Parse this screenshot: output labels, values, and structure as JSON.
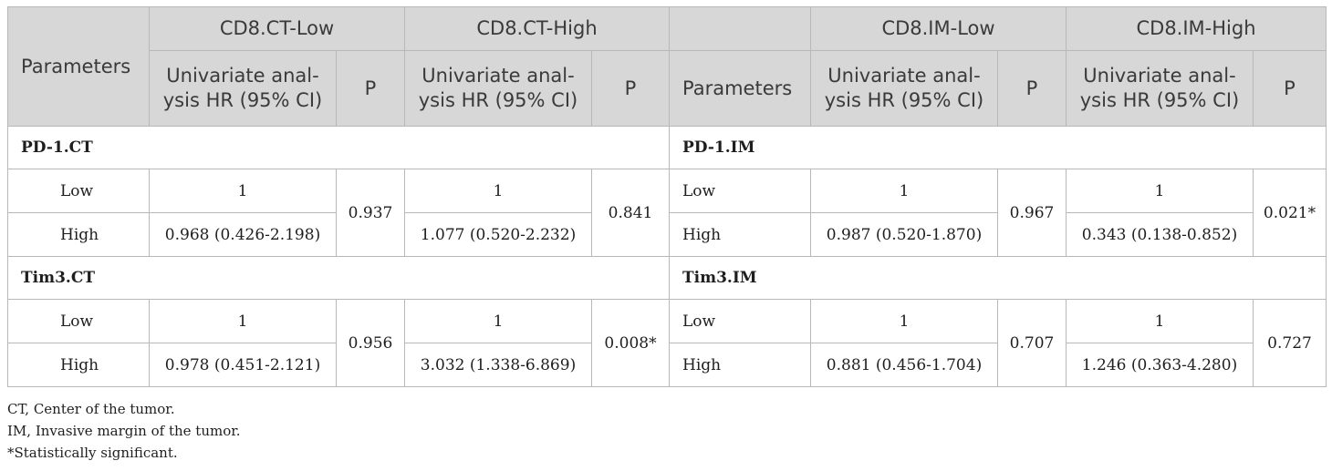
{
  "header": {
    "parameters_label": "Parameters",
    "group_ct_low": "CD8.CT-Low",
    "group_ct_high": "CD8.CT-High",
    "group_im_low": "CD8.IM-Low",
    "group_im_high": "CD8.IM-High",
    "hr_label_line1": "Univariate anal-",
    "hr_label_line2": "ysis HR (95% CI)",
    "p_label": "P"
  },
  "sections": [
    {
      "left_title": "PD-1.CT",
      "right_title": "PD-1.IM",
      "rows": [
        {
          "label": "Low",
          "ct_low_hr": "1",
          "ct_high_hr": "1",
          "im_low_hr": "1",
          "im_high_hr": "1"
        },
        {
          "label": "High",
          "ct_low_hr": "0.968 (0.426-2.198)",
          "ct_high_hr": "1.077 (0.520-2.232)",
          "im_low_hr": "0.987 (0.520-1.870)",
          "im_high_hr": "0.343 (0.138-0.852)"
        }
      ],
      "ct_low_p": "0.937",
      "ct_high_p": "0.841",
      "im_low_p": "0.967",
      "im_high_p": "0.021*"
    },
    {
      "left_title": "Tim3.CT",
      "right_title": "Tim3.IM",
      "rows": [
        {
          "label": "Low",
          "ct_low_hr": "1",
          "ct_high_hr": "1",
          "im_low_hr": "1",
          "im_high_hr": "1"
        },
        {
          "label": "High",
          "ct_low_hr": "0.978 (0.451-2.121)",
          "ct_high_hr": "3.032 (1.338-6.869)",
          "im_low_hr": "0.881 (0.456-1.704)",
          "im_high_hr": "1.246 (0.363-4.280)"
        }
      ],
      "ct_low_p": "0.956",
      "ct_high_p": "0.008*",
      "im_low_p": "0.707",
      "im_high_p": "0.727"
    }
  ],
  "footnotes": [
    "CT, Center of the tumor.",
    "IM, Invasive margin of the tumor.",
    "*Statistically significant."
  ]
}
